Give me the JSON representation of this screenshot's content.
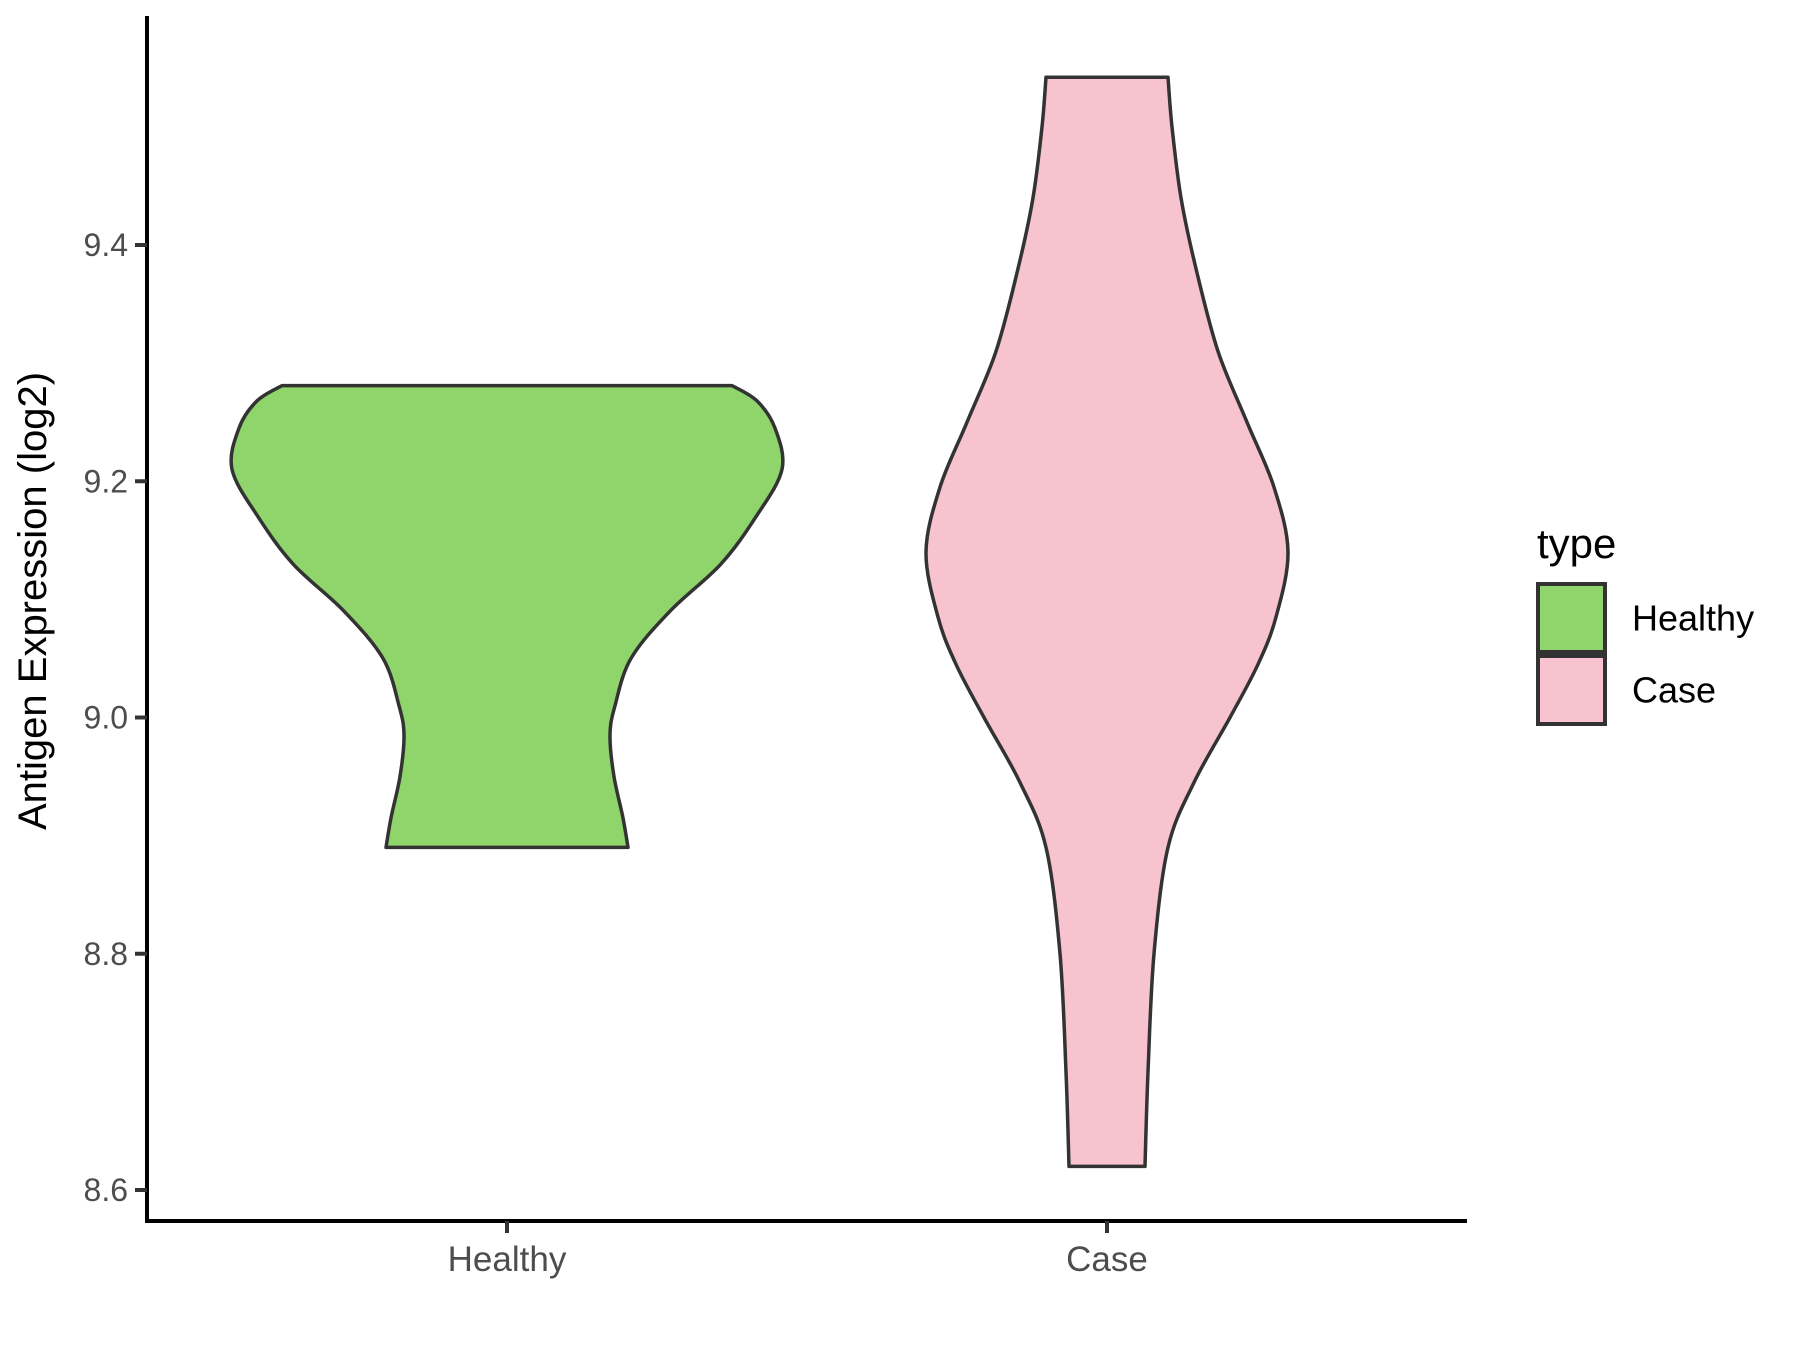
{
  "figure": {
    "background": "#ffffff",
    "y_axis": {
      "title": "Antigen Expression (log2)",
      "tick_labels": [
        "9.4",
        "9.2",
        "9.0",
        "8.8",
        "8.6"
      ],
      "tick_values": [
        9.4,
        9.2,
        9.0,
        8.8,
        8.6
      ],
      "text_color": "#4d4d4d",
      "line_color": "#000000"
    },
    "x_axis": {
      "title": "",
      "tick_labels": [
        "Healthy",
        "Case"
      ],
      "text_color": "#4d4d4d",
      "line_color": "#000000"
    },
    "legend": {
      "title": "type",
      "entries": [
        {
          "label": "Healthy",
          "color": "#8FD56C"
        },
        {
          "label": "Case",
          "color": "#F7C3CF"
        }
      ],
      "key_border_color": "#333333",
      "position": "right"
    }
  },
  "chart_data": {
    "type": "violin",
    "title": "",
    "xlabel": "",
    "ylabel": "Antigen Expression (log2)",
    "categories": [
      "Healthy",
      "Case"
    ],
    "y_ticks": [
      9.4,
      9.2,
      9.0,
      8.8,
      8.6
    ],
    "ylim": [
      8.55,
      9.6
    ],
    "grid": false,
    "legend_position": "right",
    "outline_color": "#333333",
    "series": [
      {
        "name": "Healthy",
        "fill": "#8FD56C",
        "value_range": [
          8.89,
          9.28
        ],
        "profile": [
          {
            "value": 9.281,
            "halfwidth": 225
          },
          {
            "value": 9.268,
            "halfwidth": 250
          },
          {
            "value": 9.245,
            "halfwidth": 268
          },
          {
            "value": 9.21,
            "halfwidth": 275
          },
          {
            "value": 9.17,
            "halfwidth": 249
          },
          {
            "value": 9.13,
            "halfwidth": 214
          },
          {
            "value": 9.09,
            "halfwidth": 163
          },
          {
            "value": 9.05,
            "halfwidth": 124
          },
          {
            "value": 9.01,
            "halfwidth": 108
          },
          {
            "value": 8.985,
            "halfwidth": 103
          },
          {
            "value": 8.95,
            "halfwidth": 107
          },
          {
            "value": 8.915,
            "halfwidth": 116
          },
          {
            "value": 8.89,
            "halfwidth": 121
          }
        ]
      },
      {
        "name": "Case",
        "fill": "#F7C3CF",
        "value_range": [
          8.62,
          9.54
        ],
        "profile": [
          {
            "value": 9.542,
            "halfwidth": 61
          },
          {
            "value": 9.5,
            "halfwidth": 65
          },
          {
            "value": 9.44,
            "halfwidth": 74
          },
          {
            "value": 9.38,
            "halfwidth": 89
          },
          {
            "value": 9.31,
            "halfwidth": 111
          },
          {
            "value": 9.25,
            "halfwidth": 140
          },
          {
            "value": 9.195,
            "halfwidth": 167
          },
          {
            "value": 9.14,
            "halfwidth": 181
          },
          {
            "value": 9.085,
            "halfwidth": 169
          },
          {
            "value": 9.045,
            "halfwidth": 151
          },
          {
            "value": 9.0,
            "halfwidth": 123
          },
          {
            "value": 8.945,
            "halfwidth": 87
          },
          {
            "value": 8.89,
            "halfwidth": 61
          },
          {
            "value": 8.8,
            "halfwidth": 47
          },
          {
            "value": 8.7,
            "halfwidth": 41
          },
          {
            "value": 8.62,
            "halfwidth": 38
          }
        ]
      }
    ]
  }
}
